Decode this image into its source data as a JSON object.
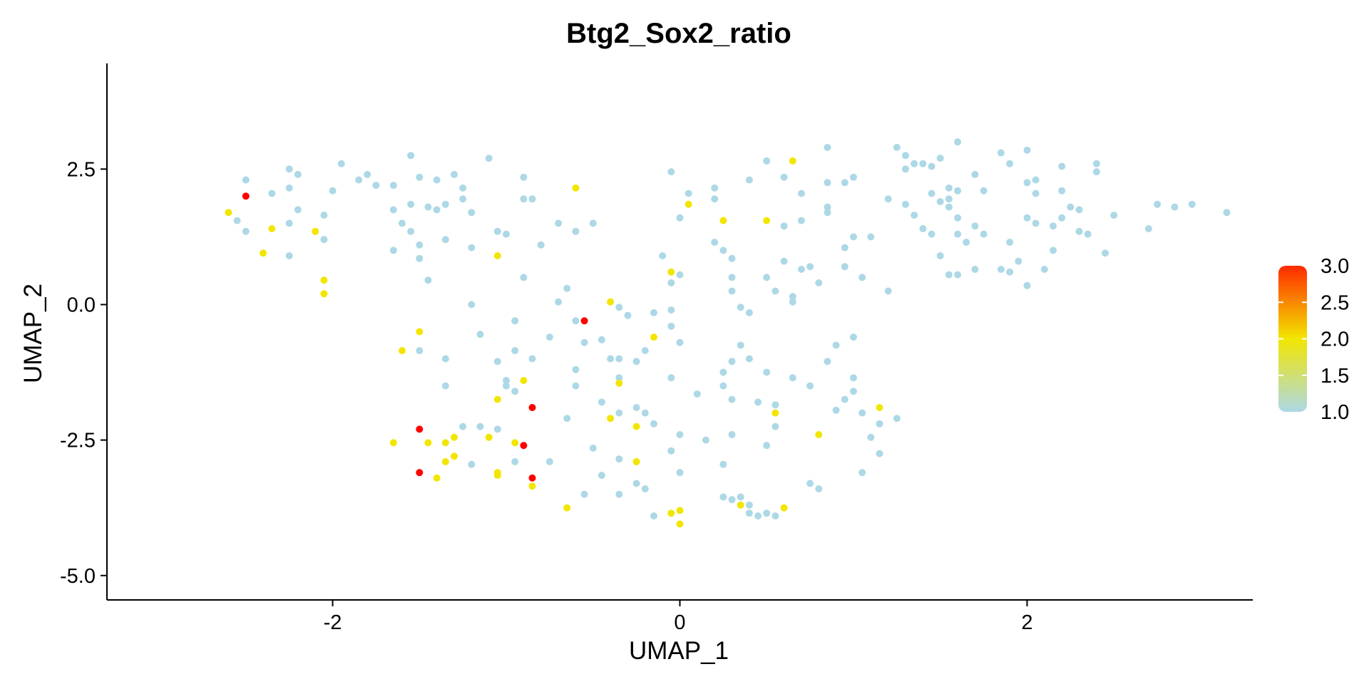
{
  "chart_data": {
    "type": "scatter",
    "title": "Btg2_Sox2_ratio",
    "xlabel": "UMAP_1",
    "ylabel": "UMAP_2",
    "xlim": [
      -3.3,
      3.3
    ],
    "ylim": [
      -5.45,
      4.45
    ],
    "x_ticks": [
      -2,
      0,
      2
    ],
    "x_tick_labels": [
      "-2",
      "0",
      "2"
    ],
    "y_ticks": [
      2.5,
      0,
      -2.5,
      -5
    ],
    "y_tick_labels": [
      "2.5",
      "0.0",
      "-2.5",
      "-5.0"
    ],
    "grid": false,
    "legend": {
      "position": "right",
      "type": "colorbar",
      "range": [
        1.0,
        3.0
      ],
      "ticks": [
        3.0,
        2.5,
        2.0,
        1.5,
        1.0
      ],
      "tick_labels": [
        "3.0",
        "2.5",
        "2.0",
        "1.5",
        "1.0"
      ]
    },
    "colors": {
      "low": "#add8e6",
      "mid": "#ffff00",
      "high": "#ff0000"
    },
    "series": [
      {
        "value": 1.0,
        "color": "#add8e6",
        "points": [
          [
            -2.5,
            2.3
          ],
          [
            -2.35,
            2.05
          ],
          [
            -2.25,
            2.15
          ],
          [
            -2.25,
            2.5
          ],
          [
            -2.2,
            2.4
          ],
          [
            -2.5,
            1.35
          ],
          [
            -2.55,
            1.55
          ],
          [
            -2.2,
            1.75
          ],
          [
            -2.25,
            1.5
          ],
          [
            -2.05,
            1.65
          ],
          [
            -2.05,
            1.2
          ],
          [
            -1.95,
            2.6
          ],
          [
            -2.0,
            2.1
          ],
          [
            -2.25,
            0.9
          ],
          [
            -1.85,
            2.3
          ],
          [
            -1.8,
            2.4
          ],
          [
            -1.75,
            2.2
          ],
          [
            -1.65,
            2.2
          ],
          [
            -1.55,
            2.75
          ],
          [
            -1.5,
            2.35
          ],
          [
            -1.4,
            2.3
          ],
          [
            -1.3,
            2.4
          ],
          [
            -1.25,
            2.15
          ],
          [
            -1.25,
            1.95
          ],
          [
            -1.1,
            2.7
          ],
          [
            -0.9,
            2.35
          ],
          [
            -1.65,
            1.75
          ],
          [
            -1.6,
            1.5
          ],
          [
            -1.55,
            1.35
          ],
          [
            -1.55,
            1.85
          ],
          [
            -1.45,
            1.8
          ],
          [
            -1.4,
            1.75
          ],
          [
            -1.35,
            1.85
          ],
          [
            -1.2,
            1.7
          ],
          [
            -1.05,
            1.35
          ],
          [
            -1.0,
            1.3
          ],
          [
            -0.9,
            1.95
          ],
          [
            -0.85,
            1.95
          ],
          [
            -0.8,
            1.1
          ],
          [
            -0.7,
            1.5
          ],
          [
            -0.6,
            1.35
          ],
          [
            -0.5,
            1.5
          ],
          [
            -1.5,
            1.1
          ],
          [
            -1.5,
            0.85
          ],
          [
            -1.35,
            1.2
          ],
          [
            -1.2,
            1.05
          ],
          [
            -1.65,
            1.0
          ],
          [
            -1.45,
            0.45
          ],
          [
            -1.2,
            0.0
          ],
          [
            -0.9,
            0.5
          ],
          [
            -0.7,
            0.05
          ],
          [
            -0.65,
            0.3
          ],
          [
            -0.6,
            -0.3
          ],
          [
            -0.45,
            -0.65
          ],
          [
            -0.35,
            -0.05
          ],
          [
            -0.3,
            -0.2
          ],
          [
            -0.15,
            -0.15
          ],
          [
            -0.05,
            -0.1
          ],
          [
            -0.05,
            -0.4
          ],
          [
            0.0,
            -0.7
          ],
          [
            -1.15,
            -0.55
          ],
          [
            -0.95,
            -0.3
          ],
          [
            -0.75,
            -0.6
          ],
          [
            -0.55,
            -0.7
          ],
          [
            -1.35,
            -1.0
          ],
          [
            -1.05,
            -1.05
          ],
          [
            -0.95,
            -0.85
          ],
          [
            -0.85,
            -1.0
          ],
          [
            -1.5,
            -0.85
          ],
          [
            -1.35,
            -1.5
          ],
          [
            -1.0,
            -1.4
          ],
          [
            -1.0,
            -1.5
          ],
          [
            -0.95,
            -1.6
          ],
          [
            -0.6,
            -1.2
          ],
          [
            -0.6,
            -1.5
          ],
          [
            -0.4,
            -1.0
          ],
          [
            -0.35,
            -1.0
          ],
          [
            -0.35,
            -1.35
          ],
          [
            -0.25,
            -1.05
          ],
          [
            -0.2,
            -0.85
          ],
          [
            -0.05,
            -1.35
          ],
          [
            -0.45,
            -1.8
          ],
          [
            -0.35,
            -2.0
          ],
          [
            -0.25,
            -1.9
          ],
          [
            -0.2,
            -2.0
          ],
          [
            -0.15,
            -2.2
          ],
          [
            -0.65,
            -2.1
          ],
          [
            -1.25,
            -2.25
          ],
          [
            -1.15,
            -2.25
          ],
          [
            -1.05,
            -2.3
          ],
          [
            -1.2,
            -2.95
          ],
          [
            -0.95,
            -2.9
          ],
          [
            -0.75,
            -2.9
          ],
          [
            -0.5,
            -2.65
          ],
          [
            -0.35,
            -2.85
          ],
          [
            -0.25,
            -2.9
          ],
          [
            -0.45,
            -3.15
          ],
          [
            -0.55,
            -3.5
          ],
          [
            -0.35,
            -3.5
          ],
          [
            -0.25,
            -3.3
          ],
          [
            -0.2,
            -3.4
          ],
          [
            -0.15,
            -3.9
          ],
          [
            -0.05,
            -2.7
          ],
          [
            0.0,
            -2.4
          ],
          [
            0.0,
            -3.1
          ],
          [
            0.15,
            -2.5
          ],
          [
            0.25,
            -3.55
          ],
          [
            0.3,
            -3.6
          ],
          [
            0.35,
            -3.55
          ],
          [
            0.4,
            -3.7
          ],
          [
            0.25,
            -2.95
          ],
          [
            0.3,
            -2.4
          ],
          [
            0.3,
            -1.75
          ],
          [
            0.25,
            -1.5
          ],
          [
            0.25,
            -1.25
          ],
          [
            0.3,
            -1.05
          ],
          [
            0.4,
            -1.0
          ],
          [
            0.35,
            -0.75
          ],
          [
            0.1,
            -1.65
          ],
          [
            0.45,
            -1.8
          ],
          [
            0.5,
            -1.25
          ],
          [
            0.55,
            -1.85
          ],
          [
            0.55,
            -2.25
          ],
          [
            0.5,
            -2.6
          ],
          [
            0.5,
            -3.85
          ],
          [
            0.45,
            -3.9
          ],
          [
            0.4,
            -3.85
          ],
          [
            0.55,
            -3.9
          ],
          [
            0.75,
            -3.3
          ],
          [
            0.8,
            -3.4
          ],
          [
            0.65,
            -1.35
          ],
          [
            0.75,
            -1.5
          ],
          [
            0.85,
            -1.05
          ],
          [
            0.9,
            -0.75
          ],
          [
            0.9,
            -1.95
          ],
          [
            0.95,
            -1.75
          ],
          [
            1.0,
            -1.35
          ],
          [
            1.0,
            -1.6
          ],
          [
            1.05,
            -2.0
          ],
          [
            1.05,
            -3.1
          ],
          [
            1.1,
            -2.45
          ],
          [
            1.15,
            -2.75
          ],
          [
            1.15,
            -2.2
          ],
          [
            1.25,
            -2.1
          ],
          [
            1.0,
            -0.6
          ],
          [
            -0.05,
            2.45
          ],
          [
            0.05,
            2.05
          ],
          [
            0.2,
            2.15
          ],
          [
            0.2,
            1.95
          ],
          [
            0.4,
            2.3
          ],
          [
            0.5,
            2.65
          ],
          [
            0.6,
            2.35
          ],
          [
            0.7,
            2.05
          ],
          [
            0.85,
            2.25
          ],
          [
            0.85,
            2.9
          ],
          [
            0.95,
            2.25
          ],
          [
            1.0,
            2.35
          ],
          [
            1.25,
            2.9
          ],
          [
            1.3,
            2.5
          ],
          [
            1.3,
            2.75
          ],
          [
            1.35,
            2.6
          ],
          [
            1.4,
            2.6
          ],
          [
            1.45,
            2.55
          ],
          [
            1.5,
            2.7
          ],
          [
            1.6,
            3.0
          ],
          [
            0.0,
            1.6
          ],
          [
            0.6,
            1.45
          ],
          [
            0.7,
            1.55
          ],
          [
            0.85,
            1.8
          ],
          [
            0.85,
            1.7
          ],
          [
            1.2,
            1.95
          ],
          [
            1.3,
            1.85
          ],
          [
            1.35,
            1.65
          ],
          [
            1.45,
            2.05
          ],
          [
            1.5,
            1.9
          ],
          [
            1.55,
            2.15
          ],
          [
            1.55,
            1.95
          ],
          [
            1.6,
            2.1
          ],
          [
            1.7,
            2.4
          ],
          [
            1.75,
            2.1
          ],
          [
            1.85,
            2.8
          ],
          [
            1.9,
            2.6
          ],
          [
            2.0,
            2.85
          ],
          [
            2.0,
            2.25
          ],
          [
            2.05,
            2.3
          ],
          [
            2.05,
            2.05
          ],
          [
            2.2,
            2.55
          ],
          [
            2.2,
            2.1
          ],
          [
            2.25,
            1.8
          ],
          [
            2.3,
            1.75
          ],
          [
            2.4,
            2.6
          ],
          [
            2.4,
            2.45
          ],
          [
            1.4,
            1.4
          ],
          [
            1.45,
            1.3
          ],
          [
            1.55,
            1.8
          ],
          [
            1.6,
            1.6
          ],
          [
            1.6,
            1.3
          ],
          [
            1.65,
            1.15
          ],
          [
            1.7,
            1.45
          ],
          [
            1.75,
            1.3
          ],
          [
            1.9,
            1.15
          ],
          [
            2.0,
            1.6
          ],
          [
            2.05,
            1.5
          ],
          [
            2.15,
            1.45
          ],
          [
            2.15,
            1.0
          ],
          [
            2.2,
            1.6
          ],
          [
            2.3,
            1.35
          ],
          [
            2.35,
            1.3
          ],
          [
            2.5,
            1.65
          ],
          [
            2.45,
            0.95
          ],
          [
            2.7,
            1.4
          ],
          [
            2.75,
            1.85
          ],
          [
            2.85,
            1.8
          ],
          [
            2.95,
            1.85
          ],
          [
            3.15,
            1.7
          ],
          [
            1.0,
            1.25
          ],
          [
            1.1,
            1.25
          ],
          [
            0.95,
            1.05
          ],
          [
            0.95,
            0.7
          ],
          [
            1.05,
            0.5
          ],
          [
            0.75,
            0.7
          ],
          [
            0.8,
            0.4
          ],
          [
            0.7,
            0.65
          ],
          [
            0.6,
            0.8
          ],
          [
            0.65,
            0.15
          ],
          [
            0.65,
            0.05
          ],
          [
            1.2,
            0.25
          ],
          [
            1.5,
            0.9
          ],
          [
            1.55,
            0.55
          ],
          [
            1.6,
            0.55
          ],
          [
            1.7,
            0.65
          ],
          [
            1.85,
            0.65
          ],
          [
            1.9,
            0.6
          ],
          [
            1.95,
            0.8
          ],
          [
            2.0,
            0.35
          ],
          [
            2.1,
            0.65
          ],
          [
            -0.1,
            0.9
          ],
          [
            -0.05,
            0.4
          ],
          [
            0.0,
            0.55
          ],
          [
            0.2,
            1.15
          ],
          [
            0.25,
            1.0
          ],
          [
            0.3,
            0.85
          ],
          [
            0.3,
            0.5
          ],
          [
            0.3,
            0.25
          ],
          [
            0.35,
            -0.05
          ],
          [
            0.4,
            -0.15
          ],
          [
            0.5,
            0.5
          ],
          [
            0.55,
            0.25
          ]
        ]
      },
      {
        "value": 2.0,
        "color": "#f2e600",
        "points": [
          [
            -2.6,
            1.7
          ],
          [
            -2.35,
            1.4
          ],
          [
            -2.1,
            1.35
          ],
          [
            -2.4,
            0.95
          ],
          [
            -2.05,
            0.45
          ],
          [
            -2.05,
            0.2
          ],
          [
            -1.05,
            0.9
          ],
          [
            -0.6,
            2.15
          ],
          [
            0.05,
            1.85
          ],
          [
            0.25,
            1.55
          ],
          [
            0.5,
            1.55
          ],
          [
            0.65,
            2.65
          ],
          [
            -0.05,
            0.6
          ],
          [
            -0.4,
            0.05
          ],
          [
            -0.15,
            -0.6
          ],
          [
            -1.5,
            -0.5
          ],
          [
            -1.6,
            -0.85
          ],
          [
            -0.9,
            -1.4
          ],
          [
            -1.05,
            -1.75
          ],
          [
            -0.35,
            -1.45
          ],
          [
            -0.4,
            -2.1
          ],
          [
            -0.25,
            -2.25
          ],
          [
            0.55,
            -2.0
          ],
          [
            0.8,
            -2.4
          ],
          [
            1.15,
            -1.9
          ],
          [
            -1.65,
            -2.55
          ],
          [
            -1.45,
            -2.55
          ],
          [
            -1.35,
            -2.55
          ],
          [
            -1.3,
            -2.45
          ],
          [
            -1.3,
            -2.8
          ],
          [
            -1.35,
            -2.9
          ],
          [
            -1.4,
            -3.2
          ],
          [
            -1.1,
            -2.45
          ],
          [
            -0.95,
            -2.55
          ],
          [
            -1.05,
            -3.1
          ],
          [
            -1.05,
            -3.15
          ],
          [
            -0.85,
            -3.35
          ],
          [
            -0.65,
            -3.75
          ],
          [
            -0.25,
            -2.9
          ],
          [
            -0.05,
            -3.85
          ],
          [
            0.0,
            -3.8
          ],
          [
            0.0,
            -4.05
          ],
          [
            0.35,
            -3.7
          ],
          [
            0.6,
            -3.75
          ]
        ]
      },
      {
        "value": 3.0,
        "color": "#ff0000",
        "points": [
          [
            -2.5,
            2.0
          ],
          [
            -0.55,
            -0.3
          ],
          [
            -0.85,
            -1.9
          ],
          [
            -1.5,
            -2.3
          ],
          [
            -1.5,
            -3.1
          ],
          [
            -0.9,
            -2.6
          ],
          [
            -0.85,
            -3.2
          ]
        ]
      }
    ]
  }
}
